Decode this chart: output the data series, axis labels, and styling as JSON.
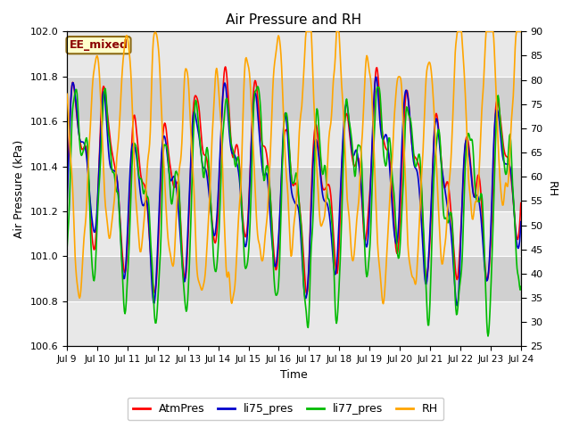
{
  "title": "Air Pressure and RH",
  "xlabel": "Time",
  "ylabel_left": "Air Pressure (kPa)",
  "ylabel_right": "RH",
  "ylim_left": [
    100.6,
    102.0
  ],
  "ylim_right": [
    25,
    90
  ],
  "yticks_left": [
    100.6,
    100.8,
    101.0,
    101.2,
    101.4,
    101.6,
    101.8,
    102.0
  ],
  "yticks_right": [
    25,
    30,
    35,
    40,
    45,
    50,
    55,
    60,
    65,
    70,
    75,
    80,
    85,
    90
  ],
  "xtick_labels": [
    "Jul 9",
    "Jul 10",
    "Jul 11",
    "Jul 12",
    "Jul 13",
    "Jul 14",
    "Jul 15",
    "Jul 16",
    "Jul 17",
    "Jul 18",
    "Jul 19",
    "Jul 20",
    "Jul 21",
    "Jul 22",
    "Jul 23",
    "Jul 24"
  ],
  "annotation_text": "EE_mixed",
  "annotation_color": "#8B0000",
  "annotation_bg": "#FFFFCC",
  "annotation_border": "#8B6914",
  "line_colors": {
    "AtmPres": "#FF0000",
    "li75_pres": "#0000CC",
    "li77_pres": "#00BB00",
    "RH": "#FFA500"
  },
  "line_widths": {
    "AtmPres": 1.2,
    "li75_pres": 1.2,
    "li77_pres": 1.2,
    "RH": 1.2
  },
  "legend_labels": [
    "AtmPres",
    "li75_pres",
    "li77_pres",
    "RH"
  ],
  "legend_colors": [
    "#FF0000",
    "#0000CC",
    "#00BB00",
    "#FFA500"
  ],
  "background_color": "#FFFFFF",
  "plot_bg_color": "#D8D8D8",
  "band_color_light": "#E8E8E8",
  "band_color_dark": "#D0D0D0",
  "title_fontsize": 11,
  "seed": 42
}
